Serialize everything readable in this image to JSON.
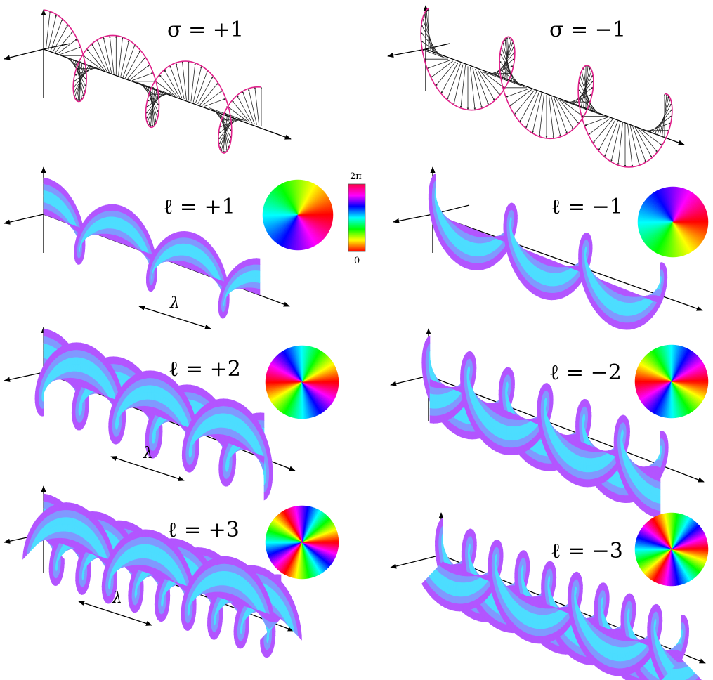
{
  "panels": [
    {
      "id": "sigma-plus",
      "kind": "polarization",
      "symbol": "σ",
      "label": "σ = +1",
      "handedness": 1
    },
    {
      "id": "sigma-minus",
      "kind": "polarization",
      "symbol": "σ",
      "label": "σ = −1",
      "handedness": -1
    },
    {
      "id": "ell-plus-1",
      "kind": "oam",
      "symbol": "ℓ",
      "label": "ℓ = +1",
      "charge": 1,
      "wavelength_label": "λ"
    },
    {
      "id": "ell-minus-1",
      "kind": "oam",
      "symbol": "ℓ",
      "label": "ℓ = −1",
      "charge": -1
    },
    {
      "id": "ell-plus-2",
      "kind": "oam",
      "symbol": "ℓ",
      "label": "ℓ = +2",
      "charge": 2,
      "wavelength_label": "λ"
    },
    {
      "id": "ell-minus-2",
      "kind": "oam",
      "symbol": "ℓ",
      "label": "ℓ = −2",
      "charge": -2
    },
    {
      "id": "ell-plus-3",
      "kind": "oam",
      "symbol": "ℓ",
      "label": "ℓ = +3",
      "charge": 3,
      "wavelength_label": "λ"
    },
    {
      "id": "ell-minus-3",
      "kind": "oam",
      "symbol": "ℓ",
      "label": "ℓ = −3",
      "charge": -3
    }
  ],
  "colorbar": {
    "top_label": "2π",
    "bottom_label": "0"
  },
  "colors": {
    "circle_stroke": "#e0208a",
    "wave_edge": "#cc33ff",
    "wave_center": "#33ffff"
  }
}
